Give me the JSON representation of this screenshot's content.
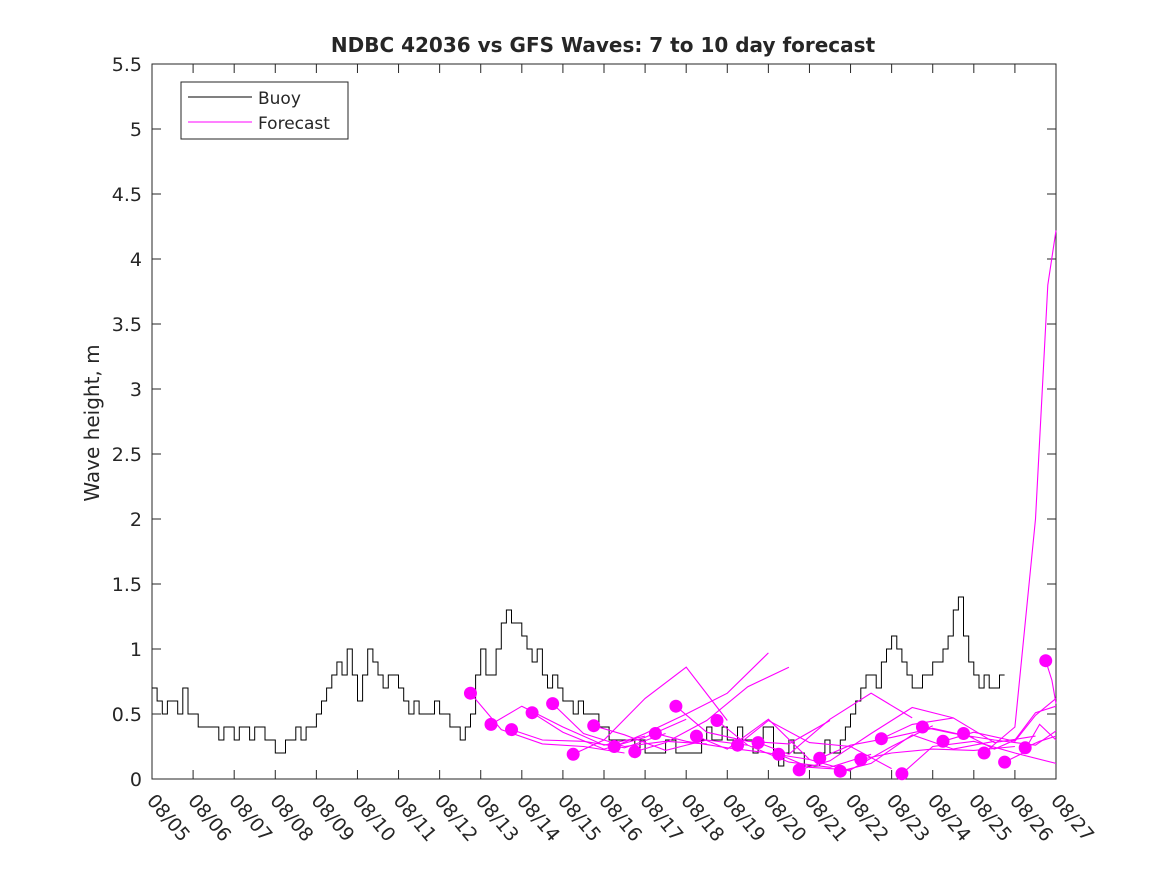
{
  "chart_data": {
    "type": "line",
    "title": "NDBC 42036 vs GFS Waves: 7 to 10 day forecast",
    "xlabel": "",
    "ylabel": "Wave height, m",
    "xlim": [
      0,
      22
    ],
    "ylim": [
      0,
      5.5
    ],
    "x_tick_labels": [
      "08/05",
      "08/06",
      "08/07",
      "08/08",
      "08/09",
      "08/10",
      "08/11",
      "08/12",
      "08/13",
      "08/14",
      "08/15",
      "08/16",
      "08/17",
      "08/18",
      "08/19",
      "08/20",
      "08/21",
      "08/22",
      "08/23",
      "08/24",
      "08/25",
      "08/26",
      "08/27"
    ],
    "y_ticks": [
      0,
      0.5,
      1,
      1.5,
      2,
      2.5,
      3,
      3.5,
      4,
      4.5,
      5,
      5.5
    ],
    "y_tick_labels": [
      "0",
      "0.5",
      "1",
      "1.5",
      "2",
      "2.5",
      "3",
      "3.5",
      "4",
      "4.5",
      "5",
      "5.5"
    ],
    "legend": {
      "position": "top-left",
      "entries": [
        {
          "name": "Buoy",
          "color": "#000000"
        },
        {
          "name": "Forecast",
          "color": "#ff00ff"
        }
      ]
    },
    "colors": {
      "buoy": "#000000",
      "forecast": "#ff00ff",
      "axis": "#262626"
    },
    "series": [
      {
        "name": "Buoy",
        "x_step_days": 0.125,
        "x_start": 0,
        "values": [
          0.7,
          0.6,
          0.5,
          0.6,
          0.6,
          0.5,
          0.7,
          0.5,
          0.5,
          0.4,
          0.4,
          0.4,
          0.4,
          0.3,
          0.4,
          0.4,
          0.3,
          0.4,
          0.4,
          0.3,
          0.4,
          0.4,
          0.3,
          0.3,
          0.2,
          0.2,
          0.3,
          0.3,
          0.4,
          0.3,
          0.4,
          0.4,
          0.5,
          0.6,
          0.7,
          0.8,
          0.9,
          0.8,
          1.0,
          0.8,
          0.6,
          0.8,
          1.0,
          0.9,
          0.8,
          0.7,
          0.8,
          0.8,
          0.7,
          0.6,
          0.5,
          0.6,
          0.5,
          0.5,
          0.5,
          0.6,
          0.5,
          0.5,
          0.4,
          0.4,
          0.3,
          0.4,
          0.5,
          0.8,
          1.0,
          0.8,
          0.8,
          1.0,
          1.2,
          1.3,
          1.2,
          1.2,
          1.1,
          1.0,
          0.9,
          1.0,
          0.8,
          0.7,
          0.8,
          0.7,
          0.6,
          0.6,
          0.5,
          0.6,
          0.5,
          0.5,
          0.5,
          0.4,
          0.4,
          0.3,
          0.3,
          0.3,
          0.3,
          0.3,
          0.2,
          0.3,
          0.2,
          0.2,
          0.2,
          0.2,
          0.3,
          0.3,
          0.2,
          0.2,
          0.2,
          0.2,
          0.2,
          0.3,
          0.4,
          0.3,
          0.3,
          0.4,
          0.3,
          0.3,
          0.4,
          0.3,
          0.3,
          0.2,
          0.3,
          0.4,
          0.4,
          0.2,
          0.1,
          0.2,
          0.3,
          0.2,
          0.2,
          0.1,
          0.1,
          0.1,
          0.2,
          0.3,
          0.2,
          0.2,
          0.3,
          0.4,
          0.5,
          0.6,
          0.7,
          0.8,
          0.8,
          0.7,
          0.9,
          1.0,
          1.1,
          1.0,
          0.9,
          0.8,
          0.7,
          0.7,
          0.8,
          0.8,
          0.9,
          0.9,
          1.0,
          1.1,
          1.3,
          1.4,
          1.1,
          0.9,
          0.8,
          0.7,
          0.8,
          0.7,
          0.7,
          0.8
        ]
      },
      {
        "name": "Forecast run 1",
        "x": [
          7.75,
          8.5,
          9.5,
          10.5,
          11.5
        ],
        "values": [
          0.66,
          0.38,
          0.27,
          0.25,
          0.2
        ]
      },
      {
        "name": "Forecast run 2",
        "x": [
          8.25,
          9.0,
          10.0,
          11.0,
          12.0
        ],
        "values": [
          0.42,
          0.56,
          0.4,
          0.26,
          0.33
        ]
      },
      {
        "name": "Forecast run 3",
        "x": [
          8.75,
          9.5,
          10.5,
          11.5,
          12.5
        ],
        "values": [
          0.38,
          0.3,
          0.29,
          0.24,
          0.35
        ]
      },
      {
        "name": "Forecast run 4",
        "x": [
          9.25,
          10.0,
          11.0,
          12.0,
          13.0
        ],
        "values": [
          0.51,
          0.36,
          0.23,
          0.32,
          0.46
        ]
      },
      {
        "name": "Forecast run 5",
        "x": [
          9.75,
          10.5,
          11.5,
          12.5,
          13.5
        ],
        "values": [
          0.58,
          0.35,
          0.25,
          0.29,
          0.27
        ]
      },
      {
        "name": "Forecast run 6",
        "x": [
          10.25,
          11.0,
          12.0,
          13.0,
          14.0
        ],
        "values": [
          0.19,
          0.3,
          0.62,
          0.86,
          0.45
        ]
      },
      {
        "name": "Forecast run 7",
        "x": [
          10.75,
          11.5,
          12.5,
          13.5,
          14.5
        ],
        "values": [
          0.41,
          0.34,
          0.22,
          0.3,
          0.26
        ]
      },
      {
        "name": "Forecast run 8",
        "x": [
          11.25,
          12.0,
          13.0,
          14.0,
          15.0
        ],
        "values": [
          0.25,
          0.35,
          0.5,
          0.66,
          0.97
        ]
      },
      {
        "name": "Forecast run 9",
        "x": [
          11.75,
          12.5,
          13.5,
          14.5,
          15.5
        ],
        "values": [
          0.21,
          0.28,
          0.45,
          0.71,
          0.86
        ]
      },
      {
        "name": "Forecast run 10",
        "x": [
          12.25,
          13.0,
          14.0,
          15.0,
          16.0
        ],
        "values": [
          0.35,
          0.29,
          0.24,
          0.2,
          0.15
        ]
      },
      {
        "name": "Forecast run 11",
        "x": [
          12.75,
          13.5,
          14.5,
          15.5,
          16.5
        ],
        "values": [
          0.56,
          0.36,
          0.29,
          0.27,
          0.45
        ]
      },
      {
        "name": "Forecast run 12",
        "x": [
          13.25,
          14.0,
          15.0,
          16.0,
          17.0
        ],
        "values": [
          0.33,
          0.23,
          0.46,
          0.15,
          0.06
        ]
      },
      {
        "name": "Forecast run 13",
        "x": [
          13.75,
          14.5,
          15.5,
          16.5,
          17.5
        ],
        "values": [
          0.45,
          0.26,
          0.13,
          0.09,
          0.19
        ]
      },
      {
        "name": "Forecast run 14",
        "x": [
          14.25,
          15.0,
          16.0,
          17.0,
          18.0
        ],
        "values": [
          0.26,
          0.45,
          0.28,
          0.25,
          0.08
        ]
      },
      {
        "name": "Forecast run 15",
        "x": [
          14.75,
          15.5,
          16.5,
          17.5,
          18.5
        ],
        "values": [
          0.28,
          0.19,
          0.46,
          0.66,
          0.47
        ]
      },
      {
        "name": "Forecast run 16",
        "x": [
          15.25,
          16.0,
          17.0,
          18.0,
          19.0
        ],
        "values": [
          0.19,
          0.09,
          0.07,
          0.25,
          0.41
        ]
      },
      {
        "name": "Forecast run 17",
        "x": [
          15.75,
          16.5,
          17.5,
          18.5,
          19.5
        ],
        "values": [
          0.07,
          0.14,
          0.35,
          0.55,
          0.47
        ]
      },
      {
        "name": "Forecast run 18",
        "x": [
          16.25,
          17.0,
          18.0,
          19.0,
          20.0
        ],
        "values": [
          0.16,
          0.26,
          0.32,
          0.39,
          0.32
        ]
      },
      {
        "name": "Forecast run 19",
        "x": [
          16.75,
          17.5,
          18.5,
          19.5,
          20.5
        ],
        "values": [
          0.06,
          0.12,
          0.34,
          0.23,
          0.29
        ]
      },
      {
        "name": "Forecast run 20",
        "x": [
          17.25,
          18.0,
          19.0,
          20.0,
          21.0
        ],
        "values": [
          0.15,
          0.2,
          0.23,
          0.22,
          0.25
        ]
      },
      {
        "name": "Forecast run 21",
        "x": [
          17.75,
          18.5,
          19.5,
          20.5,
          21.5
        ],
        "values": [
          0.31,
          0.42,
          0.47,
          0.28,
          0.33
        ]
      },
      {
        "name": "Forecast run 22",
        "x": [
          18.25,
          19.0,
          20.0,
          21.0,
          22.0
        ],
        "values": [
          0.04,
          0.25,
          0.29,
          0.2,
          0.12
        ]
      },
      {
        "name": "Forecast run 23",
        "x": [
          18.75,
          19.5,
          20.5,
          21.5,
          22.0
        ],
        "values": [
          0.4,
          0.35,
          0.3,
          0.26,
          0.37
        ]
      },
      {
        "name": "Forecast run 24",
        "x": [
          19.25,
          20.0,
          21.0,
          21.5,
          22.0
        ],
        "values": [
          0.29,
          0.36,
          0.29,
          0.49,
          0.62
        ]
      },
      {
        "name": "Forecast run 25",
        "x": [
          19.75,
          20.5,
          21.0,
          21.5,
          22.0
        ],
        "values": [
          0.35,
          0.23,
          0.3,
          0.51,
          0.56
        ]
      },
      {
        "name": "Forecast run 26",
        "x": [
          20.25,
          21.0,
          21.5,
          21.8,
          22.0
        ],
        "values": [
          0.2,
          0.4,
          2.0,
          3.8,
          4.22
        ]
      },
      {
        "name": "Forecast run 27",
        "x": [
          20.75,
          21.2,
          21.6,
          22.0
        ],
        "values": [
          0.13,
          0.2,
          0.42,
          0.3
        ]
      },
      {
        "name": "Forecast run 28",
        "x": [
          21.25,
          21.6,
          22.0
        ],
        "values": [
          0.24,
          0.29,
          0.33
        ]
      },
      {
        "name": "Forecast run 29",
        "x": [
          21.75,
          21.9,
          22.0
        ],
        "values": [
          0.91,
          0.76,
          0.58
        ]
      }
    ]
  }
}
